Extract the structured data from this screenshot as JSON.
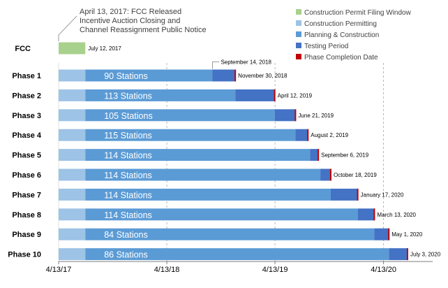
{
  "chart_data": {
    "type": "gantt",
    "title": "",
    "annotation": {
      "lines": [
        "April 13, 2017: FCC Released",
        "Incentive Auction Closing and",
        "Channel Reassignment Public Notice"
      ]
    },
    "legend": {
      "placement": "top-right",
      "items": [
        {
          "key": "filing",
          "label": "Construction Permit Filing Window",
          "color": "#a9d18e"
        },
        {
          "key": "permitting",
          "label": "Construction Permitting",
          "color": "#9dc3e6"
        },
        {
          "key": "planning",
          "label": "Planning & Construction",
          "color": "#5b9bd5"
        },
        {
          "key": "testing",
          "label": "Testing Period",
          "color": "#4472c4"
        },
        {
          "key": "completion",
          "label": "Phase Completion Date",
          "color": "#c00000"
        }
      ]
    },
    "x_axis": {
      "ticks": [
        {
          "label": "4/13/17",
          "date": "2017-04-13",
          "gridline": false
        },
        {
          "label": "4/13/18",
          "date": "2018-04-13",
          "gridline": true
        },
        {
          "label": "4/13/19",
          "date": "2019-04-13",
          "gridline": true
        },
        {
          "label": "4/13/20",
          "date": "2020-04-13",
          "gridline": true
        }
      ],
      "range": [
        "2017-04-13",
        "2020-07-03"
      ]
    },
    "fcc": {
      "label": "FCC",
      "start": "2017-04-13",
      "end": "2017-07-12",
      "end_label": "July 12, 2017"
    },
    "phases": [
      {
        "label": "Phase 1",
        "stations": "90 Stations",
        "testing_start": "2018-09-14",
        "testing_start_label": "September 14, 2018",
        "end": "2018-11-30",
        "end_label": "November 30, 2018"
      },
      {
        "label": "Phase 2",
        "stations": "113 Stations",
        "testing_start": "2018-11-30",
        "end": "2019-04-12",
        "end_label": "April 12, 2019"
      },
      {
        "label": "Phase 3",
        "stations": "105 Stations",
        "testing_start": "2019-04-12",
        "end": "2019-06-21",
        "end_label": "June 21, 2019"
      },
      {
        "label": "Phase 4",
        "stations": "115 Stations",
        "testing_start": "2019-06-21",
        "end": "2019-08-02",
        "end_label": "August 2, 2019"
      },
      {
        "label": "Phase 5",
        "stations": "114 Stations",
        "testing_start": "2019-08-09",
        "end": "2019-09-06",
        "end_label": "September 6, 2019"
      },
      {
        "label": "Phase 6",
        "stations": "114 Stations",
        "testing_start": "2019-09-13",
        "end": "2019-10-18",
        "end_label": "October 18, 2019"
      },
      {
        "label": "Phase 7",
        "stations": "114 Stations",
        "testing_start": "2019-10-18",
        "end": "2020-01-17",
        "end_label": "January 17, 2020"
      },
      {
        "label": "Phase 8",
        "stations": "114 Stations",
        "testing_start": "2020-01-17",
        "end": "2020-03-13",
        "end_label": "March 13, 2020"
      },
      {
        "label": "Phase 9",
        "stations": "84 Stations",
        "testing_start": "2020-03-13",
        "end": "2020-05-01",
        "end_label": "May 1, 2020"
      },
      {
        "label": "Phase 10",
        "stations": "86 Stations",
        "testing_start": "2020-05-01",
        "end": "2020-07-03",
        "end_label": "July 3, 2020"
      }
    ],
    "permitting_end": "2017-07-12"
  }
}
